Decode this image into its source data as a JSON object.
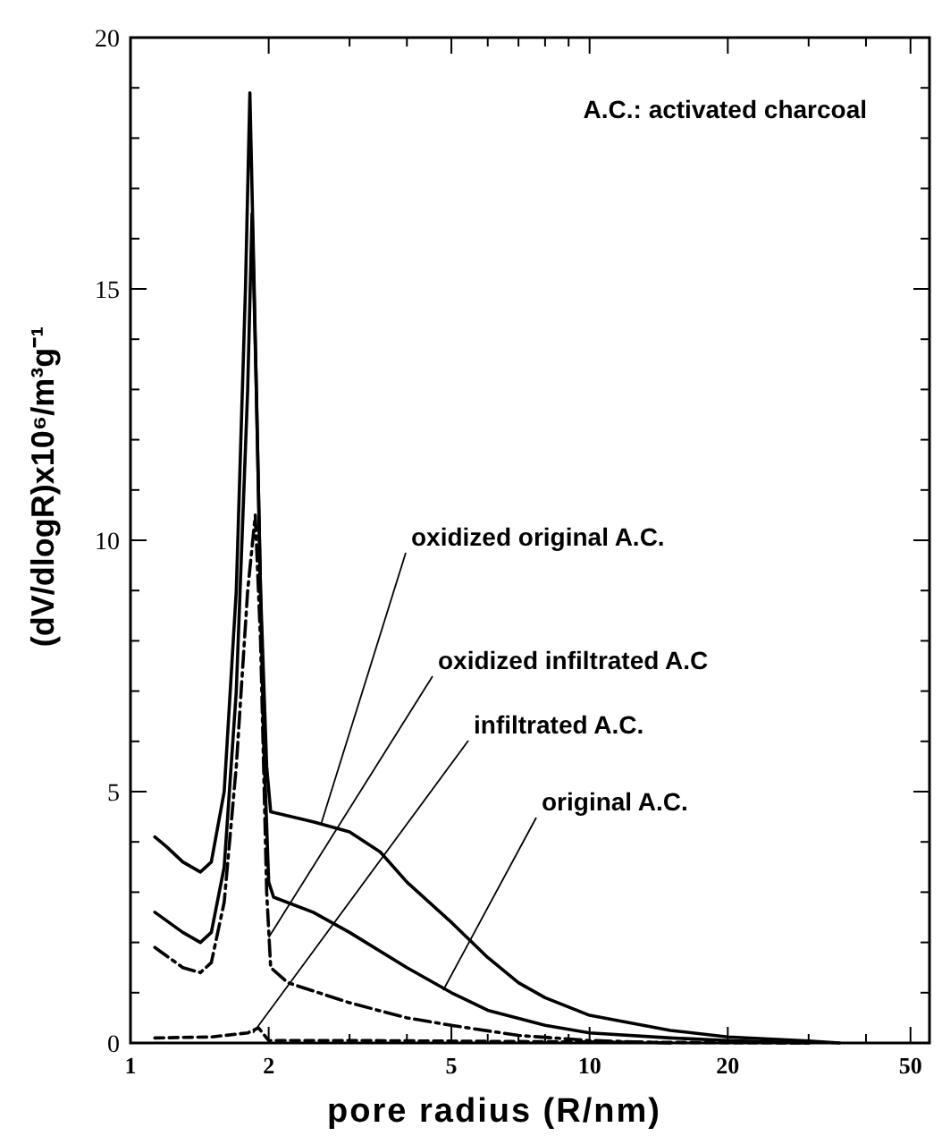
{
  "chart_data": {
    "type": "line",
    "xlabel": "pore radius (R/nm)",
    "ylabel": "(dV/dlogR)x10⁶/m³g⁻¹",
    "log": "x",
    "grid": false,
    "xlim": [
      1,
      55
    ],
    "xticks": [
      1,
      2,
      {
        "value": 3,
        "label": null
      },
      {
        "value": 4,
        "label": null
      },
      5,
      {
        "value": 6,
        "label": null
      },
      {
        "value": 7,
        "label": null
      },
      {
        "value": 8,
        "label": null
      },
      {
        "value": 9,
        "label": null
      },
      10,
      20,
      {
        "value": 30,
        "label": null
      },
      {
        "value": 40,
        "label": null
      },
      50
    ],
    "ylim": [
      0,
      20
    ],
    "yticks": [
      0,
      {
        "value": 1,
        "label": null
      },
      {
        "value": 2,
        "label": null
      },
      {
        "value": 3,
        "label": null
      },
      {
        "value": 4,
        "label": null
      },
      5,
      {
        "value": 6,
        "label": null
      },
      {
        "value": 7,
        "label": null
      },
      {
        "value": 8,
        "label": null
      },
      {
        "value": 9,
        "label": null
      },
      10,
      {
        "value": 11,
        "label": null
      },
      {
        "value": 12,
        "label": null
      },
      {
        "value": 13,
        "label": null
      },
      {
        "value": 14,
        "label": null
      },
      15,
      {
        "value": 16,
        "label": null
      },
      {
        "value": 17,
        "label": null
      },
      {
        "value": 18,
        "label": null
      },
      {
        "value": 19,
        "label": null
      },
      20
    ],
    "series": [
      {
        "color": "#000000",
        "line_style": "solid",
        "x": [
          1.13,
          1.2,
          1.3,
          1.42,
          1.5,
          1.6,
          1.7,
          1.78,
          1.82,
          1.86,
          1.92,
          1.98,
          2.02,
          2.5,
          3,
          3.5,
          4,
          5,
          6,
          7,
          8,
          10,
          15,
          20,
          30,
          35
        ],
        "values": [
          4.1,
          3.9,
          3.6,
          3.4,
          3.6,
          5,
          9,
          15,
          18.9,
          15,
          9,
          5.5,
          4.6,
          4.4,
          4.2,
          3.8,
          3.2,
          2.4,
          1.7,
          1.2,
          0.9,
          0.55,
          0.25,
          0.12,
          0.04,
          0
        ]
      },
      {
        "color": "#000000",
        "line_style": "solid",
        "x": [
          1.13,
          1.3,
          1.42,
          1.5,
          1.6,
          1.7,
          1.8,
          1.84,
          1.88,
          1.95,
          2,
          2.05,
          2.5,
          3,
          4,
          5,
          6,
          8,
          10,
          15,
          20,
          30
        ],
        "values": [
          2.6,
          2.2,
          2,
          2.2,
          3.5,
          7,
          13,
          16.5,
          13,
          6,
          3.2,
          2.9,
          2.6,
          2.2,
          1.5,
          1,
          0.65,
          0.35,
          0.2,
          0.1,
          0.05,
          0
        ]
      },
      {
        "color": "#000000",
        "line_style": "dashdot",
        "x": [
          1.13,
          1.3,
          1.42,
          1.5,
          1.6,
          1.7,
          1.8,
          1.87,
          1.92,
          1.98,
          2.02,
          2.2,
          3,
          4,
          5,
          7,
          10,
          15
        ],
        "values": [
          1.9,
          1.5,
          1.4,
          1.6,
          2.8,
          5.5,
          9,
          10.5,
          8,
          3,
          1.5,
          1.2,
          0.8,
          0.5,
          0.35,
          0.15,
          0.05,
          0
        ]
      },
      {
        "color": "#000000",
        "line_style": "dashed",
        "x": [
          1.13,
          1.5,
          1.8,
          1.9,
          2,
          3,
          10,
          30
        ],
        "values": [
          0.1,
          0.12,
          0.2,
          0.3,
          0.05,
          0.05,
          0.02,
          0
        ]
      }
    ],
    "annotations": [
      "A.C.: activated charcoal",
      {
        "text": "oxidized original A.C.",
        "x": 2.6,
        "y": 4.35
      },
      {
        "text": "oxidized infiltrated A.C",
        "x": 2,
        "y": 2.1
      },
      {
        "text": "infiltrated A.C.",
        "x": 1.85,
        "y": 0.2
      },
      {
        "text": "original A.C.",
        "x": 4.8,
        "y": 1.05
      }
    ]
  }
}
